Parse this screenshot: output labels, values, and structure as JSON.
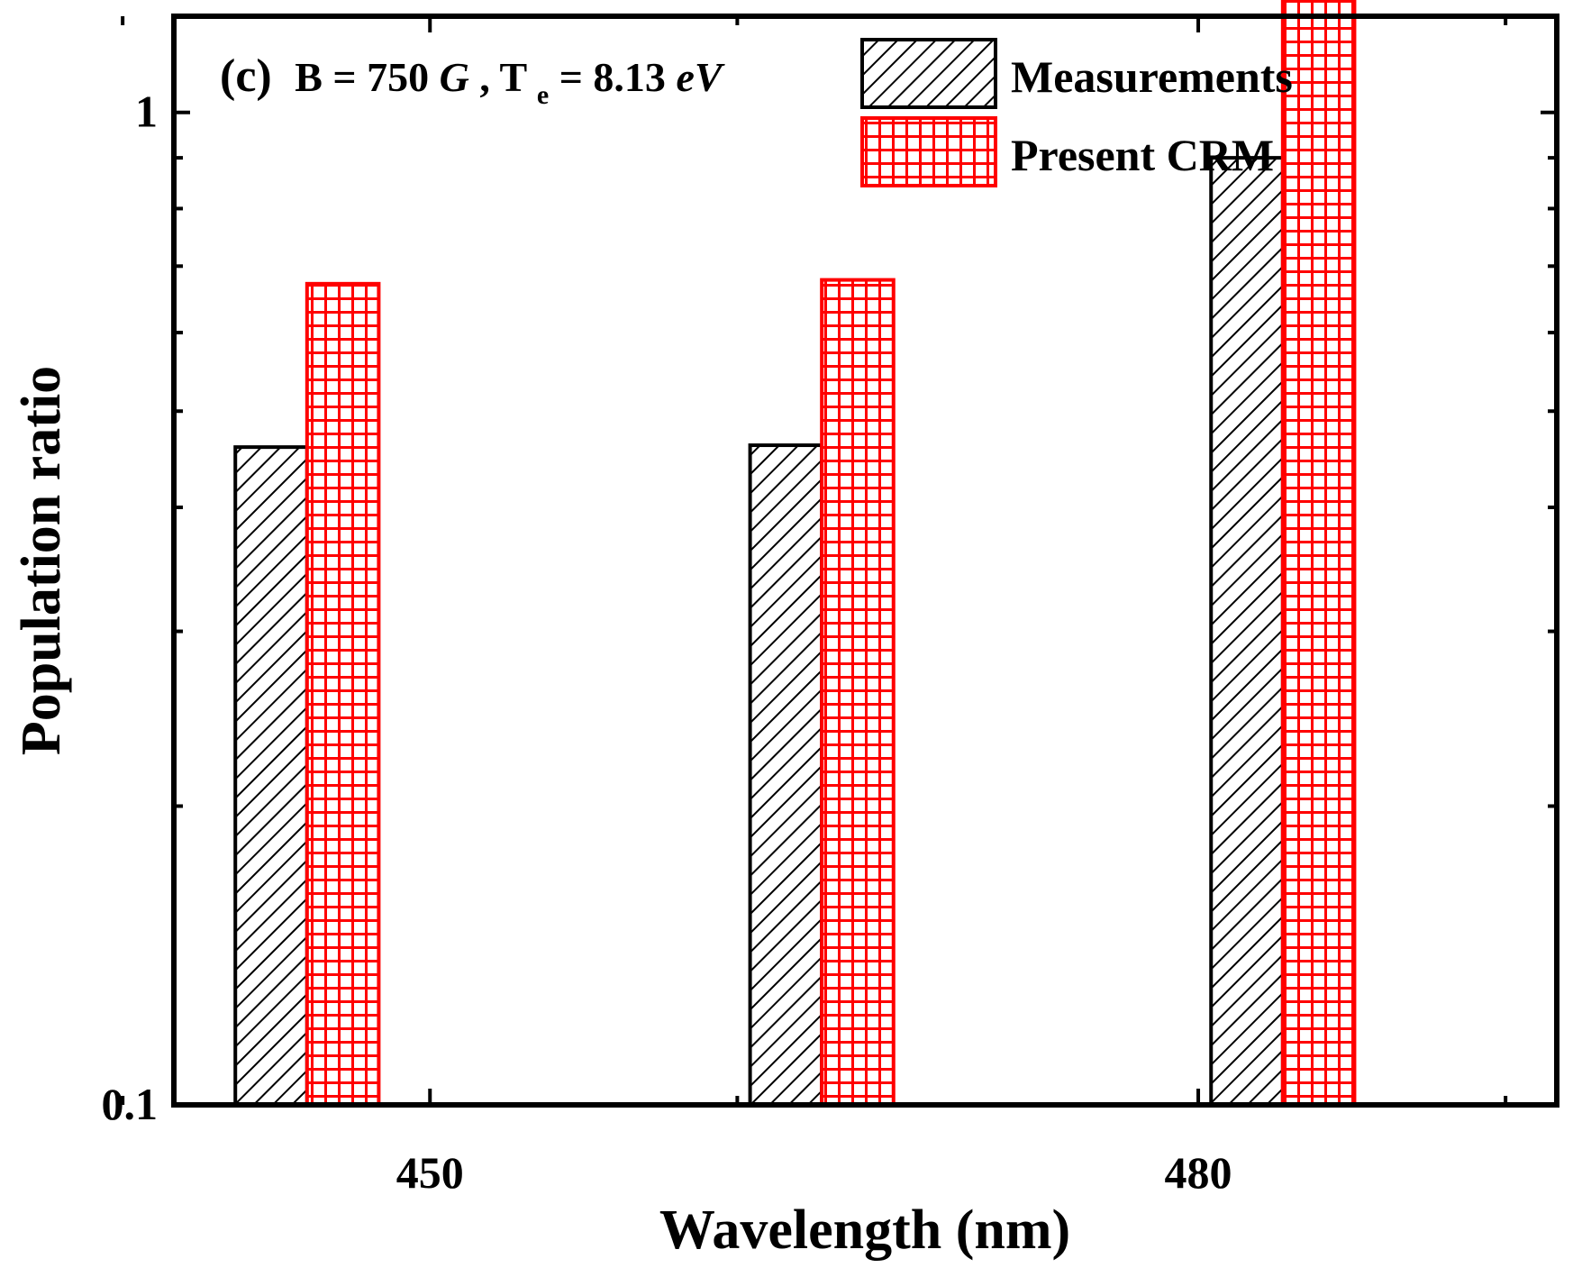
{
  "chart_data": {
    "type": "bar",
    "panel_label": "(c)",
    "condition": {
      "b_prefix": "B = 750 ",
      "b_unit": "G",
      "sep": " , T",
      "te_sub": "e",
      "te_rest": "= 8.13 ",
      "te_unit": "eV"
    },
    "xlabel": "Wavelength (nm)",
    "ylabel": "Population ratio",
    "xlim": [
      440,
      494
    ],
    "yscale": "log",
    "ylim": [
      0.1,
      1.25
    ],
    "yticks": [
      0.1,
      1
    ],
    "ytick_labels": [
      "0.1",
      "1"
    ],
    "xticks": [
      450,
      480
    ],
    "xtick_labels": [
      "450",
      "480"
    ],
    "x_minor_ticks": [
      438,
      462,
      492
    ],
    "bar_width": 2.8,
    "series": [
      {
        "name": "Measurements",
        "x": [
          443.8,
          463.9,
          481.9
        ],
        "values": [
          0.46,
          0.462,
          0.9
        ],
        "color": "#000000",
        "pattern": "diagonal-hatch"
      },
      {
        "name": "Present CRM",
        "x": [
          446.6,
          466.7,
          484.7
        ],
        "values": [
          0.672,
          0.678,
          1.32
        ],
        "color": "#ff0000",
        "pattern": "grid"
      }
    ],
    "legend": "top-right"
  }
}
